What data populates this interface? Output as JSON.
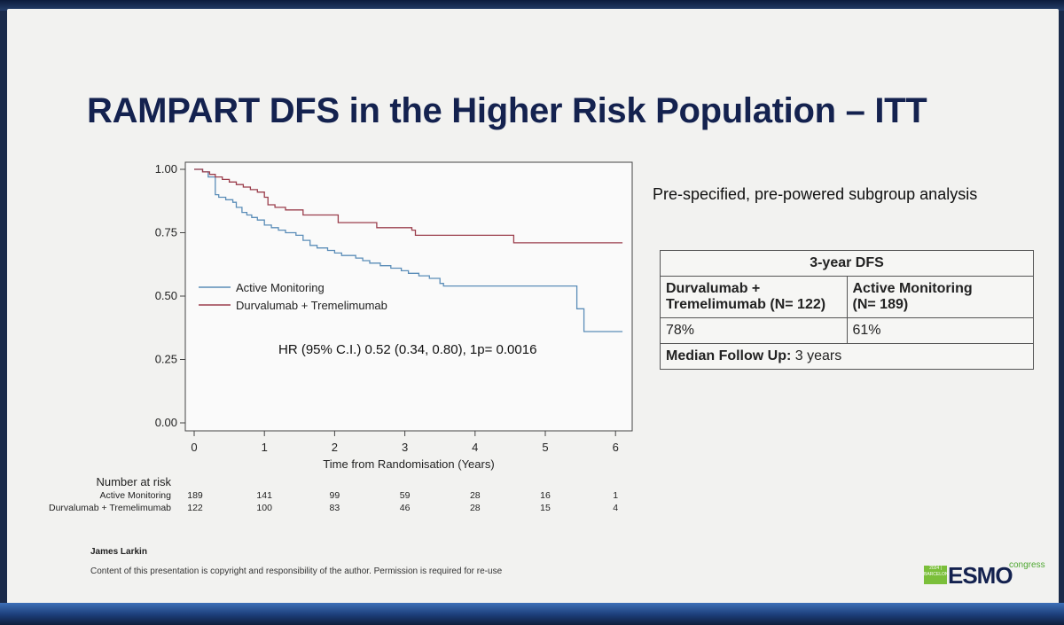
{
  "slide": {
    "title": "RAMPART DFS in the Higher Risk Population – ITT",
    "subtitle": "Pre-specified, pre-powered subgroup analysis",
    "hr_text": "HR (95% C.I.) 0.52 (0.34, 0.80), 1p= 0.0016",
    "author": "James Larkin",
    "copyright": "Content of this presentation is copyright and responsibility of the author. Permission is required for re-use",
    "logo_box": "2024 | BARCELONA",
    "logo_text": "ESMO",
    "logo_sub": "congress"
  },
  "dfs_table": {
    "header": "3-year DFS",
    "col1_header": "Durvalumab + Tremelimumab (N= 122)",
    "col1_header_line1": "Durvalumab +",
    "col1_header_line2": "Tremelimumab (N= 122)",
    "col2_header": "Active Monitoring (N= 189)",
    "col2_header_line1": "Active Monitoring",
    "col2_header_line2": "(N= 189)",
    "col1_value": "78%",
    "col2_value": "61%",
    "followup_label": "Median Follow Up:",
    "followup_value": "3 years"
  },
  "chart_data": {
    "type": "line",
    "title": "",
    "xlabel": "Time from Randomisation (Years)",
    "ylabel": "",
    "xlim": [
      0,
      6.1
    ],
    "ylim": [
      0,
      1
    ],
    "x_ticks": [
      0,
      1,
      2,
      3,
      4,
      5,
      6
    ],
    "y_ticks": [
      "0.00",
      "0.25",
      "0.50",
      "0.75",
      "1.00"
    ],
    "legend_position": "center-left",
    "series": [
      {
        "name": "Active Monitoring",
        "color": "#5b8db8",
        "x": [
          0,
          0.12,
          0.2,
          0.3,
          0.35,
          0.45,
          0.55,
          0.6,
          0.68,
          0.75,
          0.82,
          0.9,
          1.0,
          1.1,
          1.2,
          1.3,
          1.45,
          1.55,
          1.65,
          1.75,
          1.9,
          2.0,
          2.1,
          2.3,
          2.4,
          2.5,
          2.65,
          2.8,
          2.95,
          3.05,
          3.2,
          3.35,
          3.5,
          3.55,
          4.5,
          5.35,
          5.45,
          5.5,
          5.55,
          6.1
        ],
        "y": [
          1.0,
          0.99,
          0.97,
          0.9,
          0.89,
          0.88,
          0.87,
          0.85,
          0.83,
          0.82,
          0.81,
          0.8,
          0.78,
          0.77,
          0.76,
          0.75,
          0.74,
          0.72,
          0.7,
          0.69,
          0.68,
          0.67,
          0.66,
          0.65,
          0.64,
          0.63,
          0.62,
          0.61,
          0.6,
          0.59,
          0.58,
          0.57,
          0.55,
          0.54,
          0.54,
          0.54,
          0.45,
          0.45,
          0.36,
          0.36
        ]
      },
      {
        "name": "Durvalumab + Tremelimumab",
        "color": "#9b3e4c",
        "x": [
          0,
          0.12,
          0.22,
          0.3,
          0.4,
          0.5,
          0.6,
          0.7,
          0.8,
          0.9,
          1.0,
          1.05,
          1.15,
          1.3,
          1.5,
          1.55,
          2.0,
          2.05,
          2.5,
          2.6,
          3.1,
          3.15,
          4.5,
          4.55,
          6.1
        ],
        "y": [
          1.0,
          0.99,
          0.98,
          0.97,
          0.96,
          0.95,
          0.94,
          0.93,
          0.92,
          0.91,
          0.89,
          0.86,
          0.85,
          0.84,
          0.84,
          0.82,
          0.82,
          0.79,
          0.79,
          0.77,
          0.76,
          0.74,
          0.74,
          0.71,
          0.71
        ]
      }
    ],
    "risk_table": {
      "title": "Number at risk",
      "times": [
        0,
        1,
        2,
        3,
        4,
        5,
        6
      ],
      "rows": [
        {
          "label": "Active Monitoring",
          "values": [
            189,
            141,
            99,
            59,
            28,
            16,
            1
          ]
        },
        {
          "label": "Durvalumab + Tremelimumab",
          "values": [
            122,
            100,
            83,
            46,
            28,
            15,
            4
          ]
        }
      ]
    }
  }
}
